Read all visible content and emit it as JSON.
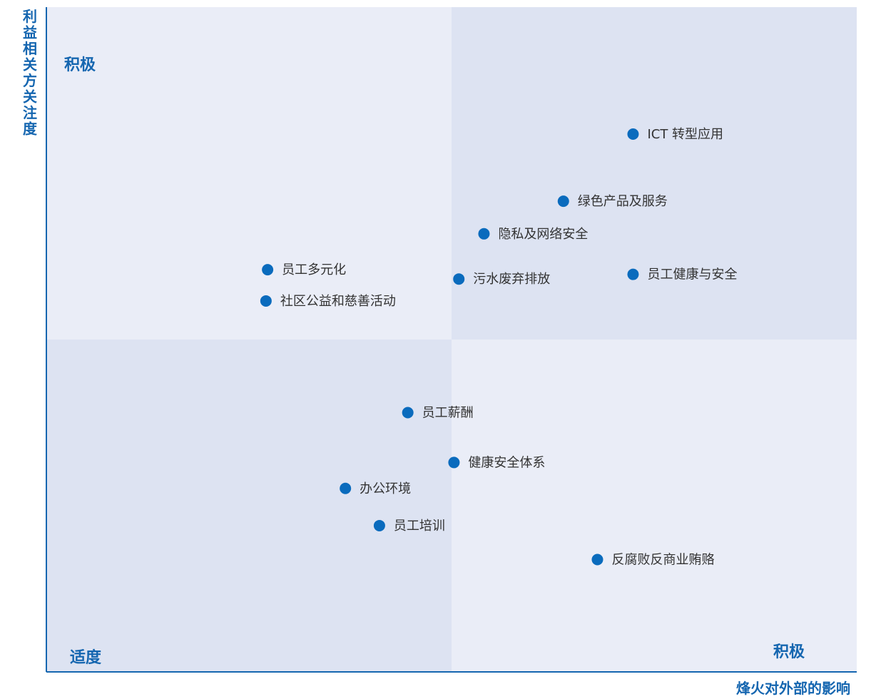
{
  "colors": {
    "accent": "#1566b0",
    "point": "#0a6bbd",
    "quadrant_light": "#eaedf7",
    "quadrant_dark": "#dde3f2",
    "label_text": "#333333"
  },
  "chart_data": {
    "type": "scatter",
    "title": "",
    "xlabel": "烽火对外部的影响",
    "ylabel": "利益相关方关注度",
    "xlim": [
      0,
      100
    ],
    "ylim": [
      0,
      100
    ],
    "grid": false,
    "quadrant_labels": {
      "top_left": "积极",
      "bottom_left": "适度",
      "bottom_right": "积极"
    },
    "points": [
      {
        "label": "ICT 转型应用",
        "x": 72.4,
        "y": 80.9
      },
      {
        "label": "绿色产品及服务",
        "x": 63.8,
        "y": 70.8
      },
      {
        "label": "隐私及网络安全",
        "x": 54.0,
        "y": 65.9
      },
      {
        "label": "员工多元化",
        "x": 27.3,
        "y": 60.5
      },
      {
        "label": "污水废弃排放",
        "x": 50.9,
        "y": 59.1
      },
      {
        "label": "员工健康与安全",
        "x": 72.4,
        "y": 59.8
      },
      {
        "label": "社区公益和慈善活动",
        "x": 27.1,
        "y": 55.8
      },
      {
        "label": "员工薪酬",
        "x": 44.6,
        "y": 39.0
      },
      {
        "label": "健康安全体系",
        "x": 50.3,
        "y": 31.5
      },
      {
        "label": "办公环境",
        "x": 36.9,
        "y": 27.6
      },
      {
        "label": "员工培训",
        "x": 41.1,
        "y": 22.0
      },
      {
        "label": "反腐败反商业贿赂",
        "x": 68.0,
        "y": 16.9
      }
    ]
  }
}
